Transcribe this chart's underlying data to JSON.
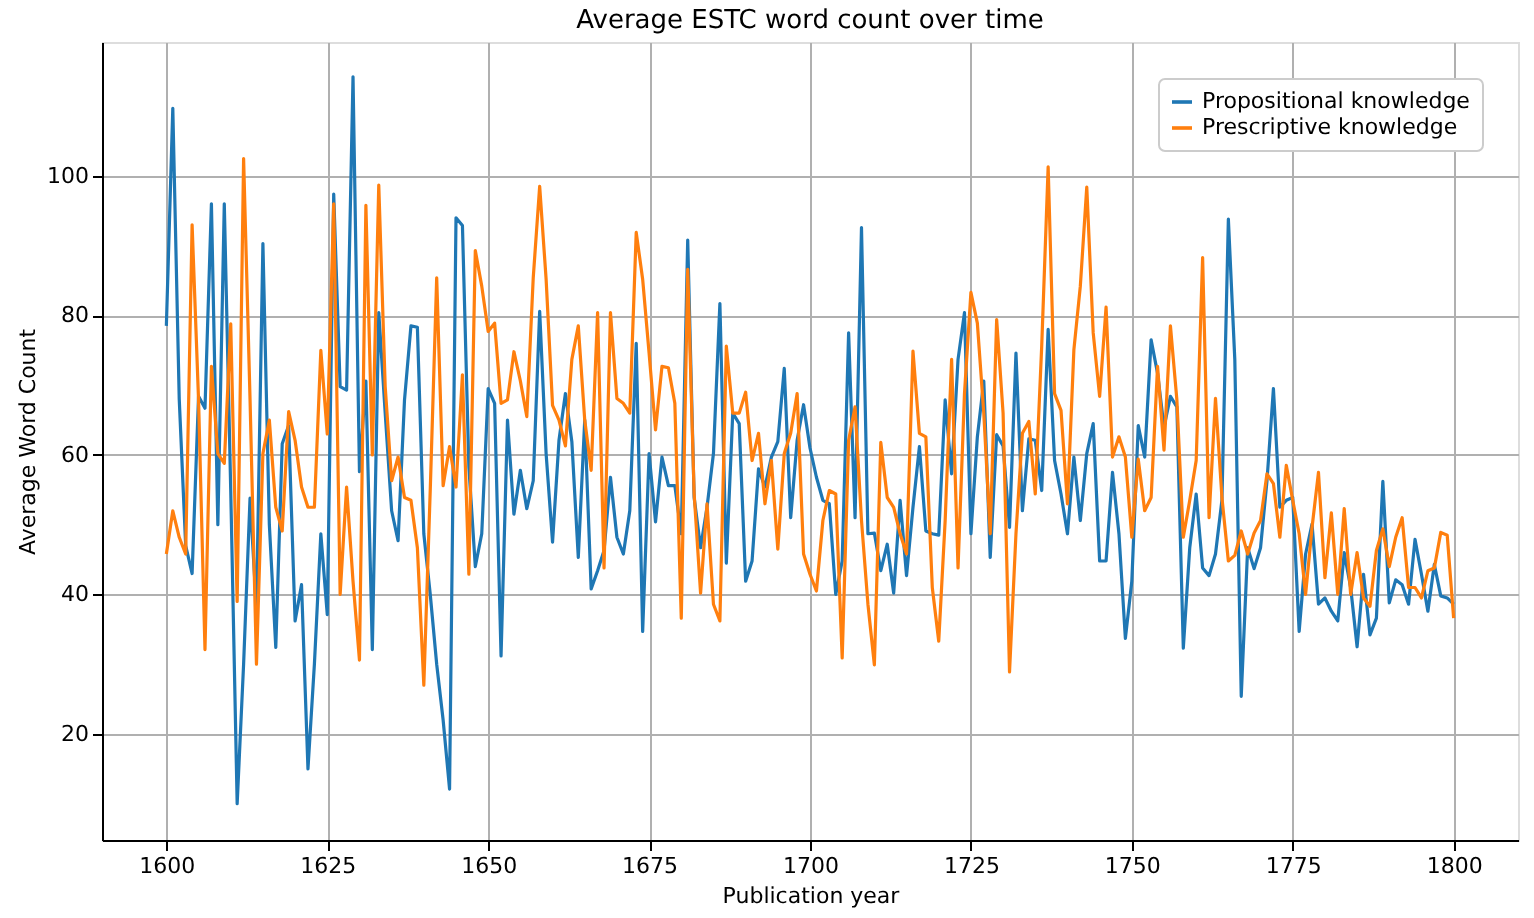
{
  "chart_data": {
    "type": "line",
    "title": "Average ESTC word count over time",
    "xlabel": "Publication year",
    "ylabel": "Average Word Count",
    "x": [
      1600,
      1601,
      1602,
      1603,
      1604,
      1605,
      1606,
      1607,
      1608,
      1609,
      1610,
      1611,
      1612,
      1613,
      1614,
      1615,
      1616,
      1617,
      1618,
      1619,
      1620,
      1621,
      1622,
      1623,
      1624,
      1625,
      1626,
      1627,
      1628,
      1629,
      1630,
      1631,
      1632,
      1633,
      1634,
      1635,
      1636,
      1637,
      1638,
      1639,
      1640,
      1641,
      1642,
      1643,
      1644,
      1645,
      1646,
      1647,
      1648,
      1649,
      1650,
      1651,
      1652,
      1653,
      1654,
      1655,
      1656,
      1657,
      1658,
      1659,
      1660,
      1661,
      1662,
      1663,
      1664,
      1665,
      1666,
      1667,
      1668,
      1669,
      1670,
      1671,
      1672,
      1673,
      1674,
      1675,
      1676,
      1677,
      1678,
      1679,
      1680,
      1681,
      1682,
      1683,
      1684,
      1685,
      1686,
      1687,
      1688,
      1689,
      1690,
      1691,
      1692,
      1693,
      1694,
      1695,
      1696,
      1697,
      1698,
      1699,
      1700,
      1701,
      1702,
      1703,
      1704,
      1705,
      1706,
      1707,
      1708,
      1709,
      1710,
      1711,
      1712,
      1713,
      1714,
      1715,
      1716,
      1717,
      1718,
      1719,
      1720,
      1721,
      1722,
      1723,
      1724,
      1725,
      1726,
      1727,
      1728,
      1729,
      1730,
      1731,
      1732,
      1733,
      1734,
      1735,
      1736,
      1737,
      1738,
      1739,
      1740,
      1741,
      1742,
      1743,
      1744,
      1745,
      1746,
      1747,
      1748,
      1749,
      1750,
      1751,
      1752,
      1753,
      1754,
      1755,
      1756,
      1757,
      1758,
      1759,
      1760,
      1761,
      1762,
      1763,
      1764,
      1765,
      1766,
      1767,
      1768,
      1769,
      1770,
      1771,
      1772,
      1773,
      1774,
      1775,
      1776,
      1777,
      1778,
      1779,
      1780,
      1781,
      1782,
      1783,
      1784,
      1785,
      1786,
      1787,
      1788,
      1789,
      1790,
      1791,
      1792,
      1793,
      1794,
      1795,
      1796,
      1797,
      1798,
      1799,
      1800
    ],
    "series": [
      {
        "name": "Propositional knowledge",
        "color": "#1f77b4",
        "values": [
          78.5,
          109.7,
          68,
          47,
          43,
          68.4,
          66.7,
          96,
          50,
          96,
          55,
          10,
          30,
          53.8,
          37.9,
          90.3,
          50,
          32.4,
          61.6,
          64.2,
          36.2,
          41.4,
          15,
          30,
          48.7,
          37.1,
          97.4,
          69.8,
          69.3,
          114.2,
          57.6,
          70.6,
          32.1,
          80.4,
          66,
          52,
          47.7,
          67.9,
          78.5,
          78.3,
          48.7,
          40,
          30,
          22,
          12.1,
          94,
          92.9,
          58.3,
          44,
          48.7,
          69.5,
          67.4,
          31.2,
          65,
          51.5,
          57.8,
          52.3,
          56.3,
          80.6,
          60.2,
          47.5,
          62.1,
          68.8,
          61.9,
          45.3,
          65,
          40.8,
          43.4,
          46.3,
          56.8,
          48.2,
          45.8,
          52,
          76,
          34.7,
          60.2,
          50.4,
          59.7,
          55.6,
          55.6,
          48.7,
          90.8,
          53.9,
          46.7,
          52.5,
          60.2,
          81.7,
          44.5,
          66,
          64.5,
          41.9,
          44.8,
          58,
          55.4,
          59.7,
          61.9,
          72.4,
          51,
          62.1,
          67.2,
          61,
          56.8,
          53.5,
          53,
          40,
          44.8,
          77.5,
          51,
          92.6,
          48.7,
          48.8,
          43.4,
          47.2,
          40.2,
          53.5,
          42.7,
          52.5,
          61.2,
          49.1,
          48.7,
          48.5,
          67.9,
          57.3,
          73.7,
          80.4,
          48.7,
          62.6,
          70.6,
          45.3,
          62.9,
          61.3,
          49.6,
          74.6,
          52,
          62.3,
          62.1,
          54.9,
          78,
          59.2,
          54.4,
          48.7,
          59.7,
          50.6,
          60.2,
          64.5,
          44.8,
          44.8,
          57.5,
          48.7,
          33.7,
          41.9,
          64.2,
          59.7,
          76.5,
          71.7,
          64,
          68.4,
          66.9,
          32.3,
          46.7,
          54.4,
          43.8,
          42.7,
          45.8,
          53.5,
          93.8,
          73.7,
          25.4,
          46.7,
          43.7,
          46.7,
          56.3,
          69.5,
          52.5,
          53.5,
          53.9,
          34.7,
          45.8,
          50.1,
          38.6,
          39.5,
          37.6,
          36.2,
          46,
          41,
          32.5,
          42.9,
          34.2,
          36.6,
          56.2,
          38.8,
          42.1,
          41.4,
          38.6,
          47.9,
          42.9,
          37.6,
          44.3,
          39.8,
          39.5,
          38.6
        ]
      },
      {
        "name": "Prescriptive knowledge",
        "color": "#ff7f0e",
        "values": [
          45.8,
          52,
          48.2,
          45.8,
          93,
          67.9,
          32.1,
          72.7,
          60.2,
          58.8,
          78.8,
          39,
          102.5,
          68,
          30,
          60.2,
          65,
          52.5,
          49.1,
          66.2,
          62.1,
          55.4,
          52.5,
          52.5,
          75,
          63,
          96,
          40,
          55.4,
          41.9,
          30.6,
          95.8,
          60,
          98.7,
          69.8,
          56.3,
          59.7,
          53.9,
          53.5,
          46.7,
          27,
          55,
          85.4,
          55.6,
          61.2,
          55.4,
          71.5,
          42.9,
          89.3,
          84.2,
          77.7,
          78.9,
          67.4,
          67.9,
          74.8,
          70.6,
          65.5,
          85.4,
          98.5,
          85.2,
          67.1,
          65,
          61.3,
          73.7,
          78.5,
          65,
          57.8,
          80.4,
          43.8,
          80.4,
          68.1,
          67.4,
          66,
          91.9,
          85.2,
          74.6,
          63.6,
          72.7,
          72.5,
          67.4,
          36.6,
          86.6,
          54.4,
          40.2,
          53,
          38.6,
          36.2,
          75.6,
          66,
          66,
          69,
          59.2,
          63.1,
          53,
          59.2,
          46.5,
          60.2,
          63.1,
          68.8,
          45.8,
          42.9,
          40.5,
          50.6,
          54.9,
          54.4,
          30.9,
          62.1,
          66.9,
          50.6,
          38.6,
          29.9,
          61.8,
          53.9,
          52.5,
          48.7,
          45.8,
          74.9,
          63.1,
          62.6,
          41,
          33.3,
          50.6,
          73.7,
          43.8,
          68.8,
          83.3,
          78.9,
          66,
          48.7,
          79.4,
          66,
          28.9,
          48.7,
          63.1,
          64.8,
          54.4,
          75.6,
          101.3,
          68.8,
          66.4,
          53,
          75.1,
          84.2,
          98.4,
          77.5,
          68.4,
          81.2,
          59.7,
          62.6,
          59.7,
          48.2,
          59.4,
          52,
          53.9,
          72.7,
          60.7,
          78.5,
          67.9,
          48.2,
          53.5,
          59.2,
          88.3,
          51,
          68.1,
          53.9,
          44.8,
          45.6,
          49.1,
          45.8,
          48.8,
          50.6,
          57.3,
          55.9,
          48.2,
          58.5,
          53.5,
          48.7,
          40,
          49.6,
          57.5,
          42.4,
          51.7,
          40,
          52.3,
          40,
          46,
          39.5,
          38.3,
          46.3,
          49.4,
          44,
          48.2,
          51,
          41,
          41,
          39.5,
          43.4,
          43.8,
          48.9,
          48.5,
          36.6
        ]
      }
    ],
    "xlim": [
      1590,
      1810
    ],
    "xticks": [
      1600,
      1625,
      1650,
      1675,
      1700,
      1725,
      1750,
      1775,
      1800
    ],
    "ylim": [
      4.8,
      119.2
    ],
    "yticks": [
      20,
      40,
      60,
      80,
      100
    ],
    "grid": true,
    "legend": "top right",
    "line_style": "solid",
    "marker": "none"
  }
}
